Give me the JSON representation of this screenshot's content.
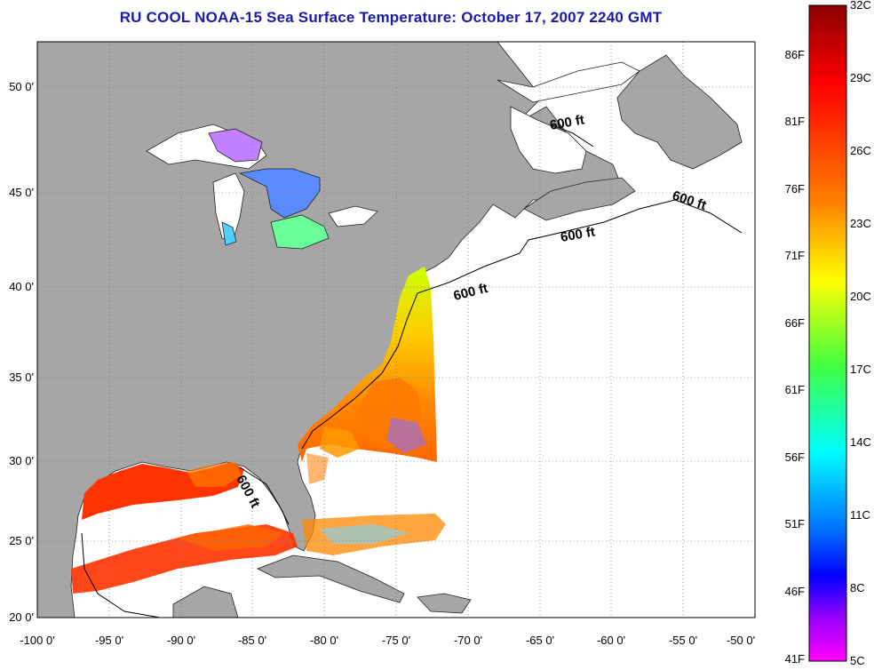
{
  "title": "RU COOL  NOAA-15  Sea Surface Temperature:  October 17, 2007 2240 GMT",
  "map": {
    "lon_range": [
      -100,
      -50
    ],
    "lat_range": [
      20,
      52.5
    ],
    "lon_ticks": [
      "-100 0'",
      "-95 0'",
      "-90 0'",
      "-85 0'",
      "-80 0'",
      "-75 0'",
      "-70 0'",
      "-65 0'",
      "-60 0'",
      "-55 0'",
      "-50 0'"
    ],
    "lat_ticks": [
      "20 0'",
      "25 0'",
      "30 0'",
      "35 0'",
      "40 0'",
      "45 0'",
      "50 0'"
    ],
    "grid": "dotted",
    "land_color": "#a6a6a6",
    "contour_labels": [
      "600 ft",
      "600 ft",
      "600 ft",
      "600 ft",
      "600 ft"
    ]
  },
  "colorbar": {
    "celsius": [
      "32C",
      "29C",
      "26C",
      "23C",
      "20C",
      "17C",
      "14C",
      "11C",
      "8C",
      "5C"
    ],
    "fahrenheit": [
      "86F",
      "81F",
      "76F",
      "71F",
      "66F",
      "61F",
      "56F",
      "51F",
      "46F",
      "41F"
    ],
    "gradient_colors": [
      "#8b0000",
      "#ff0000",
      "#ff8000",
      "#ffff00",
      "#80ff00",
      "#00ffff",
      "#0080ff",
      "#0000ff",
      "#8000ff",
      "#ff00ff"
    ]
  }
}
